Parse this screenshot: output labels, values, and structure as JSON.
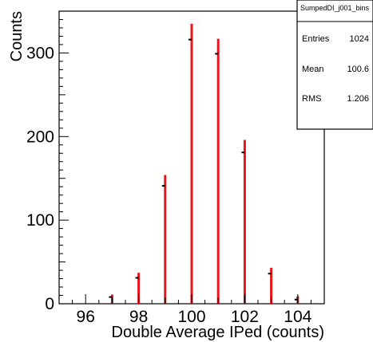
{
  "chart_data": {
    "type": "bar",
    "title": "",
    "xlabel": "Double Average IPed (counts)",
    "ylabel": "Counts",
    "xlim": [
      95,
      105
    ],
    "ylim": [
      0,
      350
    ],
    "x_ticks": [
      96,
      98,
      100,
      102,
      104
    ],
    "y_ticks": [
      0,
      100,
      200,
      300
    ],
    "grid": false,
    "legend": "none",
    "bar_color": "#e8151b",
    "marker_color": "#000000",
    "series": [
      {
        "x": [
          97,
          98,
          99,
          100,
          101,
          102,
          103,
          104
        ],
        "values": [
          11,
          37,
          154,
          335,
          317,
          196,
          43,
          9
        ],
        "markers": [
          8,
          31,
          141,
          316,
          299,
          181,
          36,
          5
        ]
      }
    ]
  },
  "stats_box": {
    "title": "SumpedDI_j001_bins",
    "rows": [
      {
        "label": "Entries",
        "value": "1024"
      },
      {
        "label": "Mean",
        "value": "100.6"
      },
      {
        "label": "RMS",
        "value": "1.206"
      }
    ]
  }
}
